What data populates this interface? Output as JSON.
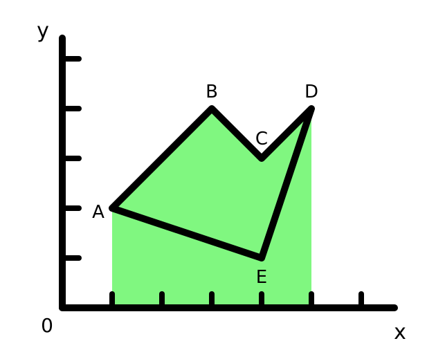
{
  "axes": {
    "x_label": "x",
    "y_label": "y",
    "origin_label": "0",
    "x_ticks": [
      1,
      2,
      3,
      4,
      5,
      6
    ],
    "y_ticks": [
      1,
      2,
      3,
      4,
      5
    ]
  },
  "shape": {
    "vertices": [
      {
        "label": "A",
        "x": 1,
        "y": 2
      },
      {
        "label": "B",
        "x": 3,
        "y": 4
      },
      {
        "label": "C",
        "x": 4,
        "y": 3
      },
      {
        "label": "D",
        "x": 5,
        "y": 4
      },
      {
        "label": "E",
        "x": 4,
        "y": 1
      }
    ],
    "shaded_region": {
      "x_from": 1,
      "x_to": 5
    },
    "fill_color": "#80f780",
    "stroke_color": "#000000"
  }
}
